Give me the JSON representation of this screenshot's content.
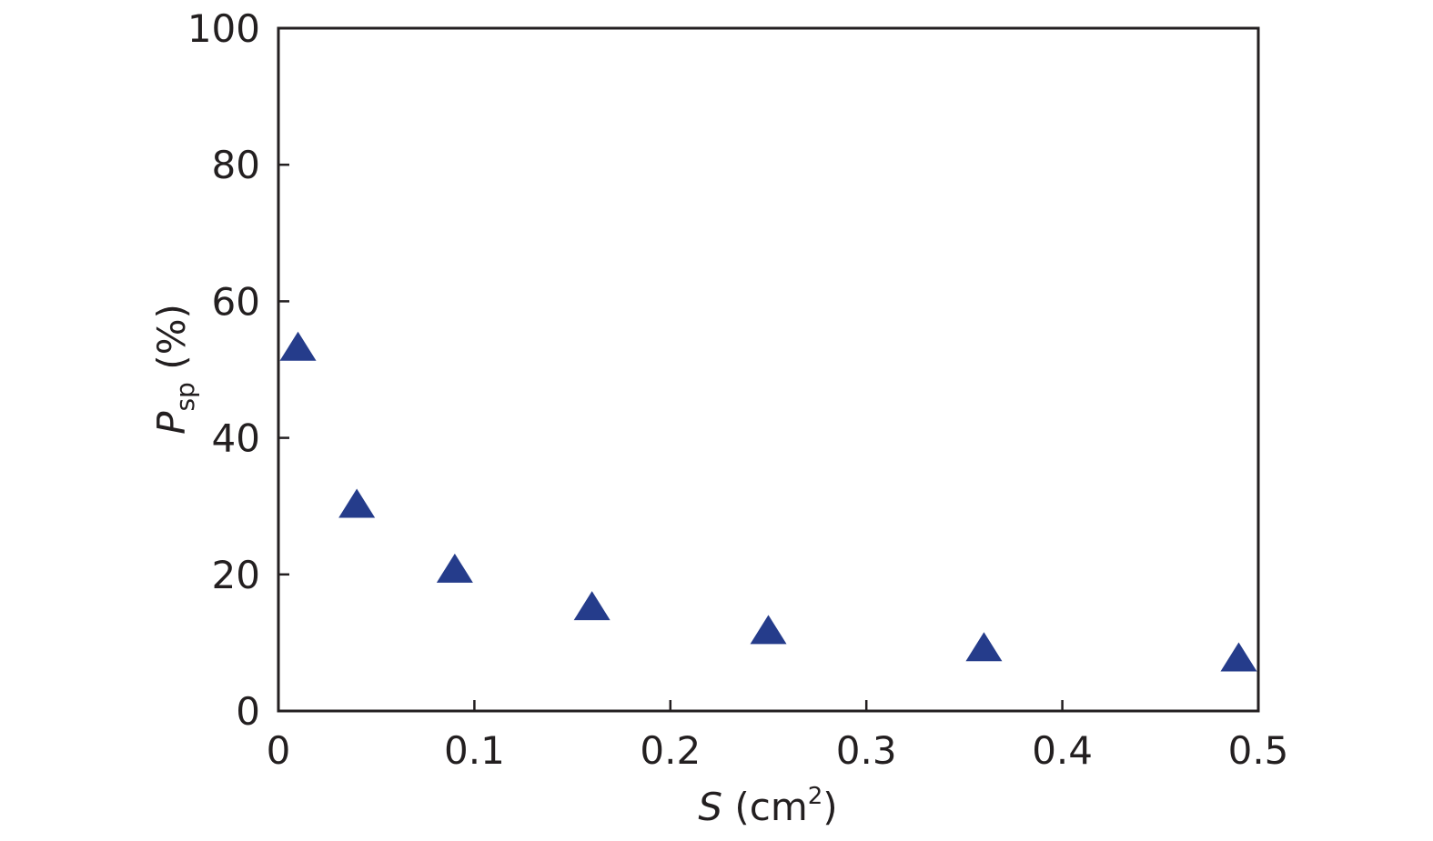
{
  "chart_data": {
    "type": "scatter",
    "xlabel": {
      "var": "S",
      "unit_pre": " (cm",
      "sup": "2",
      "unit_post": ")"
    },
    "ylabel": {
      "var": "P",
      "sub": "sp",
      "unit": " (%)"
    },
    "xlim": [
      0,
      0.5
    ],
    "ylim": [
      0,
      100
    ],
    "x_ticks": [
      0,
      0.1,
      0.2,
      0.3,
      0.4,
      0.5
    ],
    "x_tick_labels": [
      "0",
      "0.1",
      "0.2",
      "0.3",
      "0.4",
      "0.5"
    ],
    "y_ticks": [
      0,
      20,
      40,
      60,
      80,
      100
    ],
    "y_tick_labels": [
      "0",
      "20",
      "40",
      "60",
      "80",
      "100"
    ],
    "grid": false,
    "marker": "triangle",
    "marker_color": "#253c8b",
    "axis_color": "#231f20",
    "series": [
      {
        "x": [
          0.01,
          0.04,
          0.09,
          0.16,
          0.25,
          0.36,
          0.49
        ],
        "y": [
          53,
          30,
          20.5,
          15,
          11.5,
          9,
          7.5
        ]
      }
    ]
  }
}
